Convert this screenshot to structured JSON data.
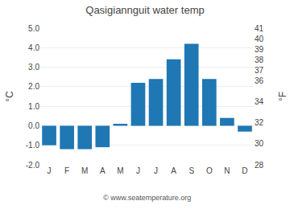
{
  "chart_data": {
    "type": "bar",
    "title": "Qasigiannguit water temp",
    "categories": [
      "J",
      "F",
      "M",
      "A",
      "M",
      "J",
      "J",
      "A",
      "S",
      "O",
      "N",
      "D"
    ],
    "values": [
      -1.0,
      -1.2,
      -1.2,
      -1.1,
      0.1,
      2.2,
      2.4,
      3.4,
      4.2,
      2.4,
      0.4,
      -0.3
    ],
    "ylabel": "°C",
    "y2label": "°F",
    "ylim": [
      -2.0,
      5.0
    ],
    "yticks": [
      {
        "value": -2.0,
        "label": "-2.0"
      },
      {
        "value": -1.0,
        "label": "-1.0"
      },
      {
        "value": 0.0,
        "label": "0.0"
      },
      {
        "value": 1.0,
        "label": "1.0"
      },
      {
        "value": 2.0,
        "label": "2.0"
      },
      {
        "value": 3.0,
        "label": "3.0"
      },
      {
        "value": 4.0,
        "label": "4.0"
      },
      {
        "value": 5.0,
        "label": "5.0"
      }
    ],
    "y2lim": [
      28,
      41
    ],
    "y2ticks": [
      28,
      30,
      32,
      34,
      36,
      37,
      38,
      39,
      40,
      41
    ],
    "annotations": [
      "© www.seatemperature.org"
    ],
    "grid": true
  }
}
